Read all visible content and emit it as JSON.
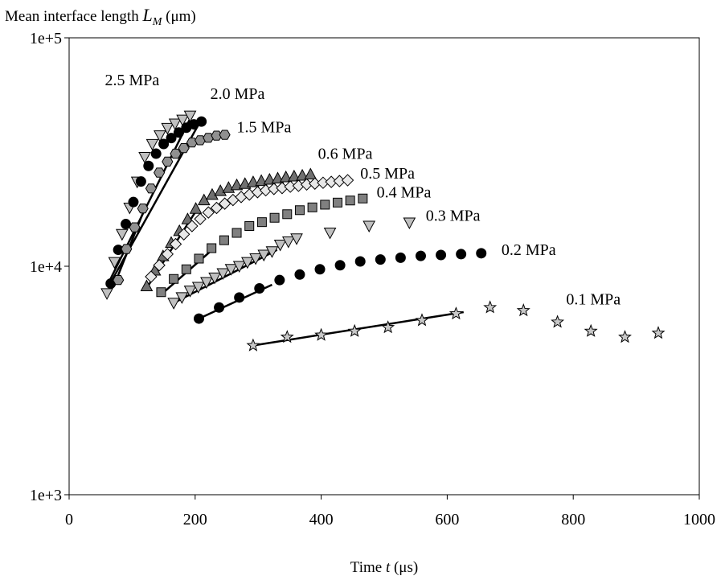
{
  "chart_data": {
    "type": "scatter",
    "ylabel_prefix": "Mean interface length ",
    "ylabel_var": "L",
    "ylabel_sub": "M",
    "ylabel_unit": " (μm)",
    "xlabel_prefix": "Time ",
    "xlabel_var": "t",
    "xlabel_unit": " (μs)",
    "xlim": [
      0,
      1000
    ],
    "ylim": [
      1000,
      100000
    ],
    "y_scale": "log",
    "grid": false,
    "x_ticks": [
      0,
      200,
      400,
      600,
      800,
      1000
    ],
    "x_tick_labels": [
      "0",
      "200",
      "400",
      "600",
      "800",
      "1000"
    ],
    "y_ticks": [
      1000,
      10000,
      100000
    ],
    "y_tick_labels": [
      "1e+3",
      "1e+4",
      "1e+5"
    ],
    "series": [
      {
        "name": "2.5 MPa",
        "marker": "triangle-down",
        "color": "#c0c0c0",
        "x": [
          60,
          72,
          84,
          96,
          108,
          120,
          132,
          144,
          156,
          168,
          180,
          192
        ],
        "y": [
          7600,
          10400,
          13800,
          18000,
          23400,
          30000,
          34200,
          37300,
          40200,
          42000,
          43700,
          45500
        ],
        "fit": {
          "x": [
            62,
            195
          ],
          "y": [
            8400,
            46000
          ]
        }
      },
      {
        "name": "2.0 MPa",
        "marker": "circle",
        "color": "#000000",
        "x": [
          66,
          78,
          90,
          102,
          114,
          126,
          138,
          150,
          162,
          174,
          186,
          198,
          210
        ],
        "y": [
          8400,
          11800,
          15300,
          19100,
          23500,
          27500,
          31100,
          34300,
          36400,
          38500,
          40400,
          41800,
          43000
        ],
        "fit": {
          "x": [
            64,
            208
          ],
          "y": [
            8300,
            43000
          ]
        }
      },
      {
        "name": "1.5 MPa",
        "marker": "hexagon",
        "color": "#909090",
        "x": [
          78,
          91,
          104,
          117,
          130,
          143,
          156,
          169,
          182,
          195,
          208,
          221,
          234,
          247
        ],
        "y": [
          8700,
          11900,
          14800,
          17900,
          21900,
          25700,
          28700,
          31100,
          32900,
          34800,
          35600,
          36500,
          37300,
          37600
        ],
        "fit": {
          "x": [
            74,
            120
          ],
          "y": [
            8600,
            17900
          ]
        }
      },
      {
        "name": "0.6 MPa",
        "marker": "triangle-up",
        "color": "#707070",
        "x": [
          123,
          136,
          149,
          162,
          175,
          188,
          201,
          214,
          227,
          240,
          253,
          266,
          279,
          292,
          305,
          318,
          331,
          344,
          357,
          370,
          383
        ],
        "y": [
          8200,
          9600,
          11100,
          12700,
          14300,
          16100,
          17900,
          19500,
          20600,
          21400,
          22100,
          22700,
          23000,
          23400,
          23700,
          24000,
          24300,
          24600,
          24800,
          25000,
          25300
        ],
        "fit": {
          "x": [
            124,
            205
          ],
          "y": [
            8100,
            18100
          ]
        }
      },
      {
        "name": "0.5 MPa",
        "marker": "diamond",
        "color": "#e8e8e8",
        "x": [
          130,
          143,
          156,
          169,
          182,
          195,
          208,
          221,
          234,
          247,
          260,
          273,
          286,
          299,
          312,
          325,
          338,
          351,
          364,
          377,
          390,
          403,
          416,
          429,
          442
        ],
        "y": [
          9000,
          10100,
          11300,
          12500,
          13800,
          15000,
          16100,
          17200,
          18000,
          18800,
          19500,
          20100,
          20600,
          21100,
          21500,
          21800,
          22000,
          22300,
          22500,
          22800,
          23000,
          23200,
          23400,
          23600,
          23800
        ]
      },
      {
        "name": "0.4 MPa",
        "marker": "square",
        "color": "#808080",
        "x": [
          146,
          166,
          186,
          206,
          226,
          246,
          266,
          286,
          306,
          326,
          346,
          366,
          386,
          406,
          426,
          446,
          466
        ],
        "y": [
          7700,
          8800,
          9700,
          10800,
          12000,
          13000,
          14000,
          15000,
          15600,
          16300,
          16900,
          17600,
          18100,
          18600,
          19000,
          19400,
          19800
        ],
        "fit": {
          "x": [
            148,
            230
          ],
          "y": [
            7600,
            12000
          ]
        }
      },
      {
        "name": "0.3 MPa",
        "marker": "triangle-down",
        "color": "#c0c0c0",
        "x": [
          166,
          179,
          192,
          205,
          218,
          231,
          244,
          257,
          270,
          283,
          296,
          309,
          322,
          335,
          348,
          361,
          414,
          476,
          540
        ],
        "y": [
          6900,
          7300,
          7800,
          8100,
          8500,
          8900,
          9300,
          9700,
          10000,
          10400,
          10800,
          11200,
          11600,
          12400,
          12800,
          13200,
          14000,
          15000,
          15500
        ],
        "fit": {
          "x": [
            170,
            330
          ],
          "y": [
            7000,
            11800
          ]
        }
      },
      {
        "name": "0.2 MPa",
        "marker": "circle",
        "color": "#000000",
        "x": [
          206,
          238,
          270,
          302,
          334,
          366,
          398,
          430,
          462,
          494,
          526,
          558,
          590,
          622,
          654
        ],
        "y": [
          5900,
          6600,
          7300,
          8000,
          8700,
          9200,
          9700,
          10100,
          10500,
          10700,
          10900,
          11100,
          11200,
          11300,
          11400
        ],
        "fit": {
          "x": [
            206,
            322
          ],
          "y": [
            5900,
            8300
          ]
        }
      },
      {
        "name": "0.1 MPa",
        "marker": "star",
        "color": "#c8c8c8",
        "x": [
          292,
          346,
          400,
          453,
          506,
          560,
          614,
          668,
          721,
          775,
          828,
          882,
          935
        ],
        "y": [
          4500,
          4900,
          5000,
          5200,
          5400,
          5800,
          6200,
          6600,
          6400,
          5700,
          5200,
          4900,
          5100
        ],
        "fit": {
          "x": [
            292,
            626
          ],
          "y": [
            4500,
            6300
          ]
        }
      }
    ],
    "annotations": [
      {
        "text": "2.5 MPa",
        "x": 100,
        "y": 62000,
        "anchor": "middle"
      },
      {
        "text": "2.0 MPa",
        "x": 224,
        "y": 54000,
        "anchor": "start"
      },
      {
        "text": "1.5 MPa",
        "x": 266,
        "y": 38500,
        "anchor": "start"
      },
      {
        "text": "0.6 MPa",
        "x": 395,
        "y": 29500,
        "anchor": "start"
      },
      {
        "text": "0.5 MPa",
        "x": 462,
        "y": 24200,
        "anchor": "start"
      },
      {
        "text": "0.4 MPa",
        "x": 488,
        "y": 20000,
        "anchor": "start"
      },
      {
        "text": "0.3 MPa",
        "x": 566,
        "y": 15800,
        "anchor": "start"
      },
      {
        "text": "0.2 MPa",
        "x": 686,
        "y": 11200,
        "anchor": "start"
      },
      {
        "text": "0.1 MPa",
        "x": 832,
        "y": 6800,
        "anchor": "middle"
      }
    ]
  }
}
